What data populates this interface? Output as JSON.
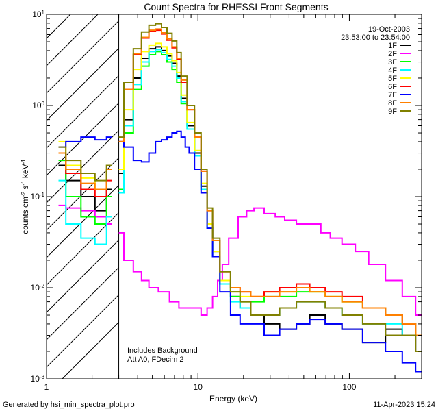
{
  "chart_data": {
    "type": "line",
    "title": "Count Spectra for RHESSI Front Segments",
    "xlabel": "Energy (keV)",
    "ylabel": {
      "base": "counts cm",
      "e1": "-2",
      "mid": " s",
      "e2": "-1",
      "tail": " keV",
      "e3": "-1"
    },
    "xscale": "log",
    "yscale": "log",
    "xlim": [
      1,
      300
    ],
    "ylim": [
      0.001,
      10
    ],
    "x_ticks": [
      {
        "value": 1,
        "label": "1"
      },
      {
        "value": 10,
        "label": "10"
      },
      {
        "value": 100,
        "label": "100"
      }
    ],
    "y_ticks": [
      {
        "value": 10,
        "mant": "10",
        "exp": "1"
      },
      {
        "value": 1,
        "mant": "10",
        "exp": "0"
      },
      {
        "value": 0.1,
        "mant": "10",
        "exp": "-1"
      },
      {
        "value": 0.01,
        "mant": "10",
        "exp": "-2"
      },
      {
        "value": 0.001,
        "mant": "10",
        "exp": "-3"
      }
    ],
    "date": "19-Oct-2003",
    "time_range": "23:53:00 to 23:54:00",
    "attenuator_boundary_kev": 3,
    "annotations": [
      "Includes Background",
      "Att A0, FDecim 2"
    ],
    "legend_position": "top-right",
    "series": [
      {
        "name": "1F",
        "color": "#000000",
        "x": [
          3.0,
          3.5,
          4.0,
          4.5,
          5.0,
          5.5,
          6.0,
          6.5,
          7.0,
          7.5,
          8.0,
          9.0,
          10,
          11,
          12,
          13,
          15,
          18,
          20,
          25,
          30,
          40,
          50,
          60,
          80,
          100,
          150,
          200,
          250,
          300
        ],
        "y": [
          0.18,
          0.7,
          2.0,
          3.3,
          4.2,
          4.4,
          4.0,
          3.5,
          2.9,
          2.1,
          1.2,
          0.6,
          0.3,
          0.13,
          0.05,
          0.025,
          0.012,
          0.008,
          0.006,
          0.005,
          0.004,
          0.0035,
          0.004,
          0.005,
          0.004,
          0.0035,
          0.0025,
          0.0035,
          0.003,
          0.002
        ]
      },
      {
        "name": "2F",
        "color": "#ff00ff",
        "x": [
          3.0,
          3.5,
          4.0,
          4.5,
          5.0,
          6.0,
          7.0,
          8.0,
          9.0,
          10,
          11,
          12,
          13,
          14,
          15,
          17,
          20,
          22,
          25,
          30,
          35,
          40,
          50,
          60,
          70,
          80,
          100,
          120,
          150,
          200,
          250,
          300
        ],
        "y": [
          0.04,
          0.02,
          0.015,
          0.012,
          0.01,
          0.009,
          0.007,
          0.006,
          0.006,
          0.006,
          0.005,
          0.006,
          0.008,
          0.012,
          0.018,
          0.035,
          0.06,
          0.07,
          0.075,
          0.065,
          0.06,
          0.055,
          0.05,
          0.05,
          0.04,
          0.035,
          0.03,
          0.025,
          0.018,
          0.012,
          0.008,
          0.005
        ]
      },
      {
        "name": "3F",
        "color": "#00ff00",
        "x": [
          3.0,
          3.5,
          4.0,
          4.5,
          5.0,
          5.5,
          6.0,
          6.5,
          7.0,
          7.5,
          8.0,
          9.0,
          10,
          11,
          12,
          13,
          15,
          18,
          20,
          25,
          30,
          40,
          50,
          60,
          80,
          100,
          150,
          200,
          250,
          300
        ],
        "y": [
          0.12,
          0.5,
          1.5,
          2.7,
          3.6,
          3.9,
          3.6,
          3.0,
          2.5,
          1.8,
          1.05,
          0.55,
          0.28,
          0.12,
          0.045,
          0.022,
          0.011,
          0.008,
          0.007,
          0.007,
          0.008,
          0.008,
          0.009,
          0.009,
          0.008,
          0.007,
          0.006,
          0.005,
          0.004,
          0.003
        ]
      },
      {
        "name": "4F",
        "color": "#00ffff",
        "x": [
          3.0,
          3.5,
          4.0,
          4.5,
          5.0,
          5.5,
          6.0,
          6.5,
          7.0,
          7.5,
          8.0,
          9.0,
          10,
          11,
          12,
          13,
          15,
          18,
          20,
          25,
          30,
          40,
          50,
          60,
          80,
          100,
          150,
          200,
          250,
          300
        ],
        "y": [
          0.11,
          0.6,
          1.7,
          3.0,
          3.9,
          4.1,
          3.8,
          3.2,
          2.7,
          2.0,
          1.1,
          0.55,
          0.28,
          0.12,
          0.045,
          0.022,
          0.011,
          0.007,
          0.006,
          0.005,
          0.005,
          0.006,
          0.007,
          0.007,
          0.006,
          0.005,
          0.004,
          0.004,
          0.003,
          0.003
        ]
      },
      {
        "name": "5F",
        "color": "#ffff00",
        "x": [
          3.0,
          3.5,
          4.0,
          4.5,
          5.0,
          5.5,
          6.0,
          6.5,
          7.0,
          7.5,
          8.0,
          9.0,
          10,
          11,
          12,
          13,
          15,
          18,
          20,
          25,
          30,
          40,
          50,
          60,
          80,
          100,
          150,
          200,
          250,
          300
        ],
        "y": [
          0.2,
          0.9,
          2.5,
          3.9,
          4.6,
          4.8,
          4.4,
          3.7,
          3.1,
          2.3,
          1.3,
          0.65,
          0.32,
          0.14,
          0.05,
          0.025,
          0.012,
          0.009,
          0.008,
          0.008,
          0.009,
          0.009,
          0.01,
          0.009,
          0.008,
          0.007,
          0.006,
          0.005,
          0.004,
          0.003
        ]
      },
      {
        "name": "6F",
        "color": "#ff0000",
        "x": [
          3.0,
          3.5,
          4.0,
          4.5,
          5.0,
          5.5,
          6.0,
          6.5,
          7.0,
          7.5,
          8.0,
          9.0,
          10,
          11,
          12,
          13,
          15,
          18,
          20,
          25,
          30,
          40,
          50,
          60,
          80,
          100,
          150,
          200,
          250,
          300
        ],
        "y": [
          0.4,
          1.5,
          3.6,
          5.5,
          6.5,
          6.7,
          6.1,
          5.2,
          4.3,
          3.2,
          1.8,
          0.9,
          0.45,
          0.19,
          0.07,
          0.033,
          0.015,
          0.01,
          0.009,
          0.008,
          0.009,
          0.01,
          0.011,
          0.01,
          0.009,
          0.008,
          0.006,
          0.005,
          0.004,
          0.003
        ]
      },
      {
        "name": "7F",
        "color": "#0000ff",
        "x": [
          3.0,
          3.5,
          4.0,
          4.5,
          5.0,
          5.5,
          6.0,
          6.5,
          7.0,
          7.5,
          8.0,
          8.5,
          9.0,
          10,
          11,
          12,
          13,
          15,
          18,
          20,
          25,
          30,
          40,
          50,
          60,
          80,
          100,
          150,
          200,
          250,
          300
        ],
        "y": [
          0.4,
          0.35,
          0.25,
          0.24,
          0.3,
          0.4,
          0.42,
          0.45,
          0.5,
          0.52,
          0.45,
          0.35,
          0.3,
          0.2,
          0.11,
          0.045,
          0.022,
          0.009,
          0.005,
          0.004,
          0.004,
          0.003,
          0.0035,
          0.004,
          0.0045,
          0.004,
          0.0035,
          0.0025,
          0.002,
          0.0015,
          0.0012
        ]
      },
      {
        "name": "8F",
        "color": "#ff8000",
        "x": [
          3.0,
          3.5,
          4.0,
          4.5,
          5.0,
          5.5,
          6.0,
          6.5,
          7.0,
          7.5,
          8.0,
          9.0,
          10,
          11,
          12,
          13,
          15,
          18,
          20,
          25,
          30,
          40,
          50,
          60,
          80,
          100,
          150,
          200,
          250,
          300
        ],
        "y": [
          0.4,
          1.5,
          3.7,
          5.6,
          6.7,
          6.9,
          6.3,
          5.4,
          4.4,
          3.3,
          1.9,
          0.9,
          0.45,
          0.19,
          0.07,
          0.033,
          0.015,
          0.01,
          0.009,
          0.008,
          0.008,
          0.009,
          0.01,
          0.009,
          0.008,
          0.007,
          0.006,
          0.005,
          0.004,
          0.003
        ]
      },
      {
        "name": "9F",
        "color": "#808000",
        "x": [
          3.0,
          3.5,
          4.0,
          4.5,
          5.0,
          5.5,
          6.0,
          6.5,
          7.0,
          7.5,
          8.0,
          9.0,
          10,
          11,
          12,
          13,
          15,
          18,
          20,
          25,
          30,
          40,
          50,
          60,
          80,
          100,
          150,
          200,
          250,
          300
        ],
        "y": [
          0.45,
          1.8,
          4.2,
          6.4,
          7.6,
          7.9,
          7.2,
          6.2,
          5.1,
          3.8,
          2.1,
          1.0,
          0.5,
          0.2,
          0.075,
          0.035,
          0.015,
          0.009,
          0.007,
          0.005,
          0.005,
          0.006,
          0.007,
          0.007,
          0.006,
          0.005,
          0.004,
          0.003,
          0.003,
          0.002
        ]
      }
    ],
    "low_energy_points": [
      {
        "name": "1F",
        "x": [
          1.2,
          1.5,
          1.9,
          2.3,
          2.7
        ],
        "y": [
          0.22,
          0.15,
          0.1,
          0.07,
          0.12
        ]
      },
      {
        "name": "2F",
        "x": [
          1.2,
          1.5,
          1.9,
          2.3,
          2.7
        ],
        "y": [
          0.08,
          0.075,
          0.07,
          0.06,
          0.05
        ]
      },
      {
        "name": "3F",
        "x": [
          1.2,
          1.5,
          1.9,
          2.3,
          2.7
        ],
        "y": [
          0.25,
          0.1,
          0.06,
          0.05,
          0.1
        ]
      },
      {
        "name": "4F",
        "x": [
          1.2,
          1.5,
          1.9,
          2.3,
          2.7
        ],
        "y": [
          0.15,
          0.05,
          0.035,
          0.03,
          0.06
        ]
      },
      {
        "name": "5F",
        "x": [
          1.2,
          1.5,
          1.9,
          2.3,
          2.7
        ],
        "y": [
          0.4,
          0.22,
          0.16,
          0.12,
          0.2
        ]
      },
      {
        "name": "6F",
        "x": [
          1.2,
          1.5,
          1.9,
          2.3,
          2.7
        ],
        "y": [
          0.3,
          0.18,
          0.12,
          0.1,
          0.15
        ]
      },
      {
        "name": "7F",
        "x": [
          1.2,
          1.5,
          1.9,
          2.3,
          2.7
        ],
        "y": [
          0.35,
          0.4,
          0.45,
          0.42,
          0.45
        ]
      },
      {
        "name": "8F",
        "x": [
          1.2,
          1.5,
          1.9,
          2.3,
          2.7
        ],
        "y": [
          0.3,
          0.2,
          0.14,
          0.12,
          0.2
        ]
      },
      {
        "name": "9F",
        "x": [
          1.2,
          1.5,
          1.9,
          2.3,
          2.7
        ],
        "y": [
          0.35,
          0.25,
          0.18,
          0.15,
          0.22
        ]
      }
    ]
  },
  "footer": {
    "left": "Generated by hsi_min_spectra_plot.pro",
    "right": "11-Apr-2023 15:24"
  }
}
